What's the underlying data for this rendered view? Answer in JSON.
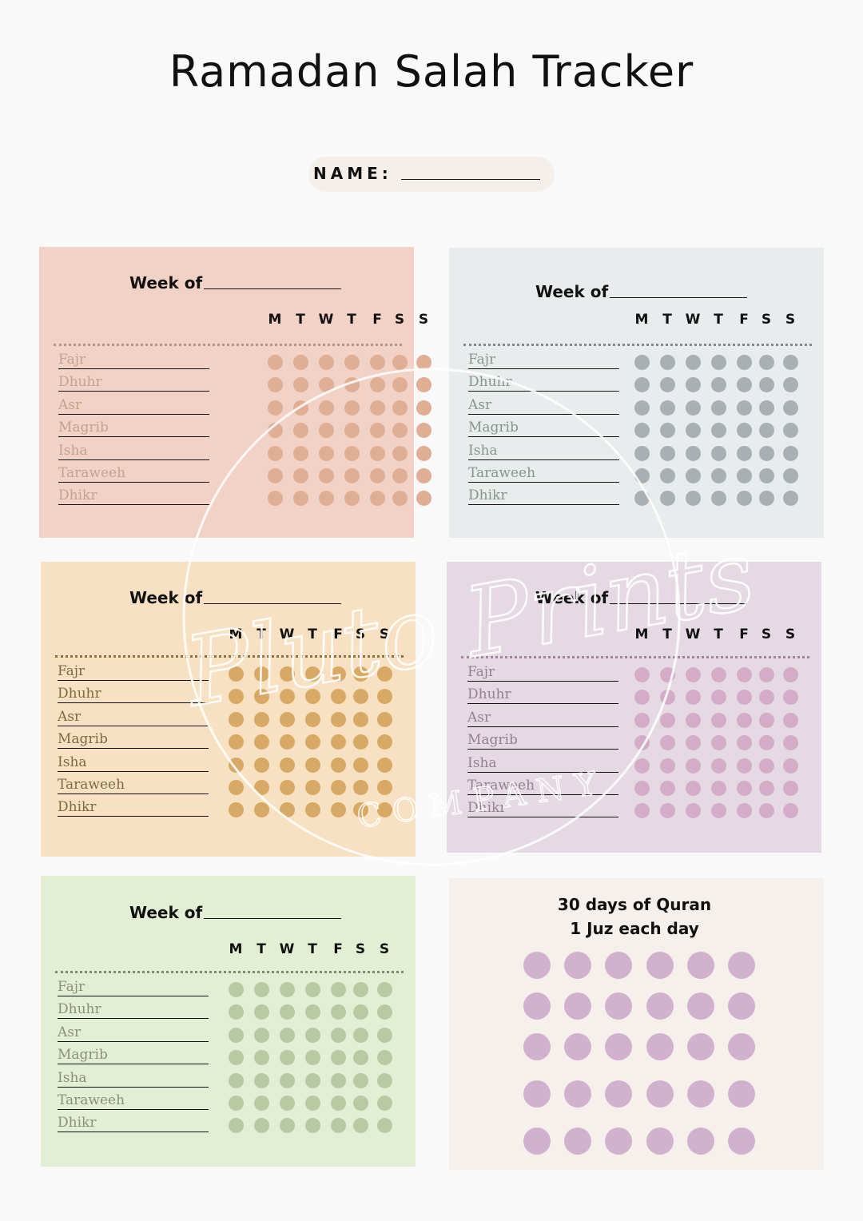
{
  "title": "Ramadan Salah Tracker",
  "name_label": "NAME:",
  "days": [
    "M",
    "T",
    "W",
    "T",
    "F",
    "S",
    "S"
  ],
  "prayers": [
    "Fajr",
    "Dhuhr",
    "Asr",
    "Magrib",
    "Isha",
    "Taraweeh",
    "Dhikr"
  ],
  "weeks": [
    {
      "label": "Week of",
      "bg": "#f2d1c6",
      "dot": "#e0ae95",
      "text": "#c4a28f",
      "dotted": "#b69484"
    },
    {
      "label": "Week of",
      "bg": "#e8ecec",
      "dot": "#a8b0b4",
      "text": "#86978a",
      "dotted": "#7d8c90"
    },
    {
      "label": "Week of",
      "bg": "#f7e1c2",
      "dot": "#d8a964",
      "text": "#7d6a44",
      "dotted": "#8d7040"
    },
    {
      "label": "Week of",
      "bg": "#e5dae3",
      "dot": "#d4acc8",
      "text": "#958092",
      "dotted": "#a08697"
    },
    {
      "label": "Week of",
      "bg": "#e3efd5",
      "dot": "#b8c9a3",
      "text": "#8e8f7a",
      "dotted": "#7e8e6a"
    }
  ],
  "quran": {
    "title_line1": "30 days of Quran",
    "title_line2": "1 Juz each day",
    "days": 30,
    "bg": "#f5f0ec",
    "dot": "#d2b1cf"
  },
  "watermark": {
    "script": "Pluto Prints",
    "company": "COMPANY"
  }
}
